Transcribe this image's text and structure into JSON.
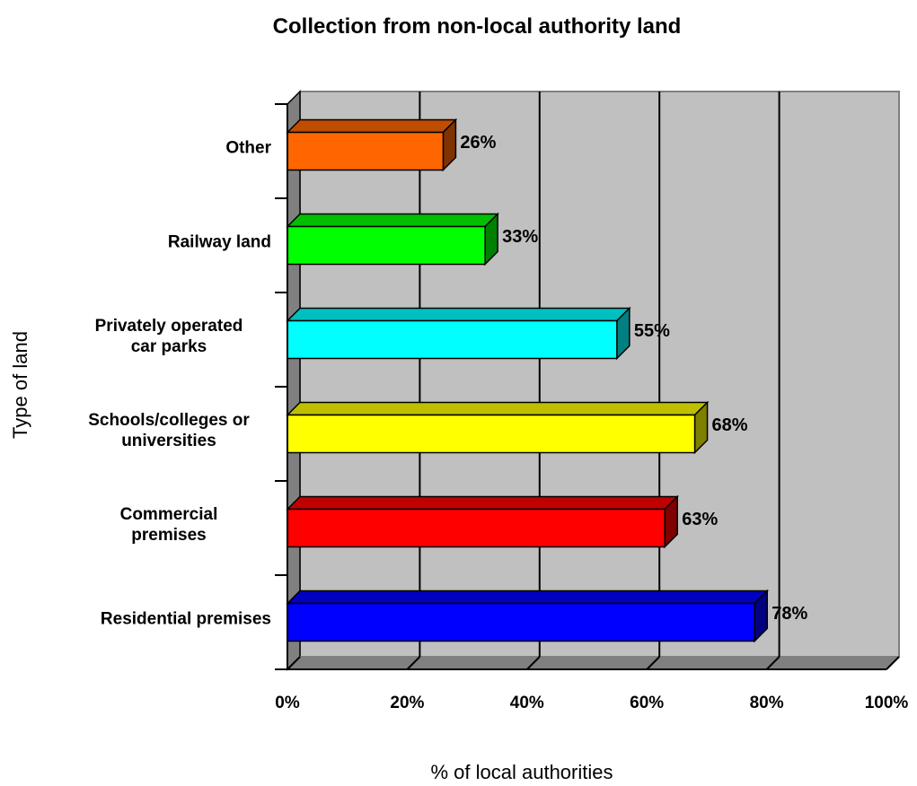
{
  "chart_data": {
    "type": "bar",
    "orientation": "horizontal",
    "title": "Collection from non-local authority land",
    "xlabel": "% of local authorities",
    "ylabel": "Type of land",
    "xlim": [
      0,
      100
    ],
    "x_ticks": [
      "0%",
      "20%",
      "40%",
      "60%",
      "80%",
      "100%"
    ],
    "grid": true,
    "categories": [
      {
        "label": [
          "Residential premises"
        ],
        "value": 78,
        "value_label": "78%",
        "color": "#0000ff"
      },
      {
        "label": [
          "Commercial",
          "premises"
        ],
        "value": 63,
        "value_label": "63%",
        "color": "#ff0000"
      },
      {
        "label": [
          "Schools/colleges or",
          "universities"
        ],
        "value": 68,
        "value_label": "68%",
        "color": "#ffff00"
      },
      {
        "label": [
          "Privately operated",
          "car parks"
        ],
        "value": 55,
        "value_label": "55%",
        "color": "#00ffff"
      },
      {
        "label": [
          "Railway land"
        ],
        "value": 33,
        "value_label": "33%",
        "color": "#00ff00"
      },
      {
        "label": [
          "Other"
        ],
        "value": 26,
        "value_label": "26%",
        "color": "#ff6600"
      }
    ]
  }
}
